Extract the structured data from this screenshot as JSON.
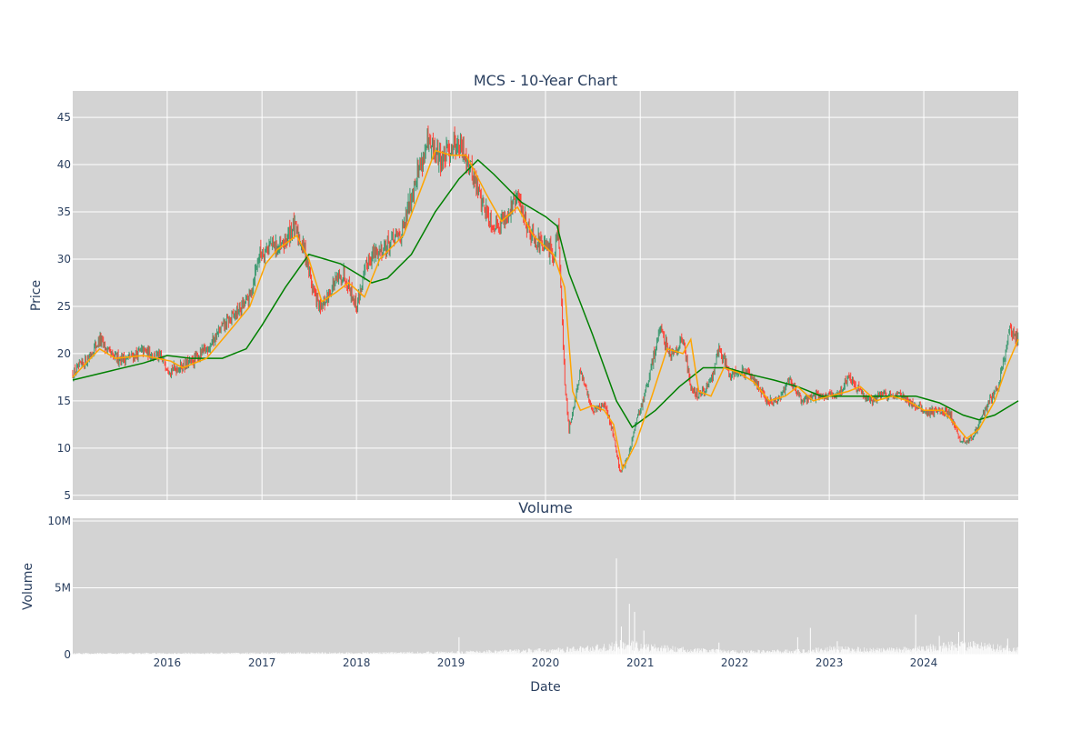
{
  "chart_data": [
    {
      "type": "candlestick",
      "title": "MCS - 10-Year Chart",
      "ylabel": "Price",
      "ylim": [
        4.5,
        47.8
      ],
      "yticks": [
        5,
        10,
        15,
        20,
        25,
        30,
        35,
        40,
        45
      ],
      "xlim": [
        "2015-01-01",
        "2024-12-31"
      ],
      "xticks": [
        {
          "date": "2016-01-01",
          "label": "2016"
        },
        {
          "date": "2017-01-01",
          "label": "2017"
        },
        {
          "date": "2018-01-01",
          "label": "2018"
        },
        {
          "date": "2019-01-01",
          "label": "2019"
        },
        {
          "date": "2020-01-01",
          "label": "2020"
        },
        {
          "date": "2021-01-01",
          "label": "2021"
        },
        {
          "date": "2022-01-01",
          "label": "2022"
        },
        {
          "date": "2023-01-01",
          "label": "2023"
        },
        {
          "date": "2024-01-01",
          "label": "2024"
        }
      ],
      "grid": true,
      "colors": {
        "increasing": "#3d9970",
        "decreasing": "#ff4136",
        "ma_short": "#ffa500",
        "ma_long": "#008000",
        "plot_bg": "#d3d3d3"
      },
      "price_close": [
        [
          "2015-01-01",
          17.8
        ],
        [
          "2015-03-01",
          19.5
        ],
        [
          "2015-04-15",
          21.5
        ],
        [
          "2015-06-01",
          19.6
        ],
        [
          "2015-08-01",
          19.5
        ],
        [
          "2015-10-01",
          20.3
        ],
        [
          "2015-12-01",
          19.6
        ],
        [
          "2016-01-15",
          18.3
        ],
        [
          "2016-04-01",
          19.0
        ],
        [
          "2016-06-01",
          20.5
        ],
        [
          "2016-08-01",
          22.8
        ],
        [
          "2016-10-01",
          24.5
        ],
        [
          "2016-11-15",
          26.0
        ],
        [
          "2016-12-20",
          30.5
        ],
        [
          "2017-02-01",
          31.5
        ],
        [
          "2017-03-15",
          31.0
        ],
        [
          "2017-05-01",
          33.5
        ],
        [
          "2017-06-15",
          31.0
        ],
        [
          "2017-07-15",
          27.0
        ],
        [
          "2017-08-15",
          24.5
        ],
        [
          "2017-10-01",
          27.2
        ],
        [
          "2017-11-15",
          28.5
        ],
        [
          "2018-01-01",
          25.0
        ],
        [
          "2018-02-15",
          30.0
        ],
        [
          "2018-05-01",
          31.5
        ],
        [
          "2018-07-01",
          33.0
        ],
        [
          "2018-08-15",
          38.5
        ],
        [
          "2018-10-01",
          42.0
        ],
        [
          "2018-12-01",
          40.5
        ],
        [
          "2019-01-15",
          42.5
        ],
        [
          "2019-03-01",
          41.0
        ],
        [
          "2019-05-01",
          36.0
        ],
        [
          "2019-06-15",
          33.5
        ],
        [
          "2019-08-01",
          34.5
        ],
        [
          "2019-09-15",
          36.5
        ],
        [
          "2019-11-01",
          33.0
        ],
        [
          "2019-12-15",
          31.5
        ],
        [
          "2020-02-01",
          30.5
        ],
        [
          "2020-02-20",
          33.5
        ],
        [
          "2020-03-15",
          17.0
        ],
        [
          "2020-04-01",
          12.0
        ],
        [
          "2020-05-15",
          18.0
        ],
        [
          "2020-07-01",
          14.0
        ],
        [
          "2020-08-15",
          14.5
        ],
        [
          "2020-09-15",
          12.0
        ],
        [
          "2020-10-15",
          7.5
        ],
        [
          "2020-11-15",
          9.0
        ],
        [
          "2020-12-15",
          12.5
        ],
        [
          "2021-02-01",
          17.0
        ],
        [
          "2021-03-15",
          22.5
        ],
        [
          "2021-05-01",
          20.0
        ],
        [
          "2021-06-15",
          21.5
        ],
        [
          "2021-07-15",
          16.5
        ],
        [
          "2021-08-15",
          15.5
        ],
        [
          "2021-10-01",
          17.0
        ],
        [
          "2021-11-01",
          20.5
        ],
        [
          "2021-12-15",
          18.0
        ],
        [
          "2022-02-01",
          18.0
        ],
        [
          "2022-03-15",
          17.5
        ],
        [
          "2022-05-01",
          15.0
        ],
        [
          "2022-06-15",
          14.8
        ],
        [
          "2022-08-01",
          17.5
        ],
        [
          "2022-09-15",
          15.0
        ],
        [
          "2022-11-01",
          15.5
        ],
        [
          "2022-12-15",
          15.5
        ],
        [
          "2023-02-01",
          15.5
        ],
        [
          "2023-03-15",
          17.5
        ],
        [
          "2023-05-01",
          16.0
        ],
        [
          "2023-06-15",
          15.0
        ],
        [
          "2023-08-01",
          15.8
        ],
        [
          "2023-10-01",
          15.5
        ],
        [
          "2023-12-01",
          14.5
        ],
        [
          "2024-01-15",
          13.8
        ],
        [
          "2024-03-01",
          14.0
        ],
        [
          "2024-04-15",
          13.5
        ],
        [
          "2024-05-15",
          11.0
        ],
        [
          "2024-06-15",
          10.5
        ],
        [
          "2024-07-15",
          11.5
        ],
        [
          "2024-09-01",
          14.5
        ],
        [
          "2024-10-15",
          16.5
        ],
        [
          "2024-11-10",
          20.0
        ],
        [
          "2024-11-25",
          22.5
        ],
        [
          "2024-12-31",
          21.5
        ]
      ],
      "ma_short": [
        [
          "2015-01-01",
          17.5
        ],
        [
          "2015-04-15",
          20.5
        ],
        [
          "2015-06-15",
          19.5
        ],
        [
          "2015-10-01",
          19.8
        ],
        [
          "2016-01-15",
          19.2
        ],
        [
          "2016-03-01",
          18.5
        ],
        [
          "2016-06-01",
          19.5
        ],
        [
          "2016-09-01",
          22.5
        ],
        [
          "2016-11-15",
          25.0
        ],
        [
          "2017-01-15",
          29.5
        ],
        [
          "2017-03-01",
          31.0
        ],
        [
          "2017-05-15",
          32.5
        ],
        [
          "2017-07-01",
          30.0
        ],
        [
          "2017-08-20",
          25.5
        ],
        [
          "2017-10-15",
          26.5
        ],
        [
          "2017-12-01",
          27.5
        ],
        [
          "2018-02-01",
          26.0
        ],
        [
          "2018-04-01",
          30.0
        ],
        [
          "2018-07-01",
          32.5
        ],
        [
          "2018-09-15",
          38.0
        ],
        [
          "2018-11-01",
          41.5
        ],
        [
          "2019-01-01",
          41.0
        ],
        [
          "2019-03-01",
          41.0
        ],
        [
          "2019-05-15",
          37.0
        ],
        [
          "2019-07-15",
          34.0
        ],
        [
          "2019-09-15",
          35.5
        ],
        [
          "2019-11-15",
          32.5
        ],
        [
          "2020-02-01",
          30.5
        ],
        [
          "2020-03-15",
          27.0
        ],
        [
          "2020-04-15",
          16.0
        ],
        [
          "2020-05-15",
          14.0
        ],
        [
          "2020-07-01",
          14.5
        ],
        [
          "2020-08-15",
          14.0
        ],
        [
          "2020-09-20",
          12.5
        ],
        [
          "2020-10-25",
          7.8
        ],
        [
          "2020-12-15",
          10.5
        ],
        [
          "2021-02-15",
          15.5
        ],
        [
          "2021-04-15",
          20.5
        ],
        [
          "2021-06-15",
          20.0
        ],
        [
          "2021-07-15",
          21.5
        ],
        [
          "2021-08-15",
          16.0
        ],
        [
          "2021-10-01",
          15.5
        ],
        [
          "2021-11-20",
          18.5
        ],
        [
          "2022-01-15",
          18.0
        ],
        [
          "2022-03-15",
          17.0
        ],
        [
          "2022-05-15",
          15.0
        ],
        [
          "2022-07-15",
          15.5
        ],
        [
          "2022-09-01",
          16.5
        ],
        [
          "2022-11-01",
          15.0
        ],
        [
          "2023-01-01",
          15.5
        ],
        [
          "2023-03-15",
          16.0
        ],
        [
          "2023-05-01",
          16.5
        ],
        [
          "2023-07-01",
          15.0
        ],
        [
          "2023-09-01",
          15.5
        ],
        [
          "2023-11-01",
          15.0
        ],
        [
          "2024-01-01",
          14.0
        ],
        [
          "2024-03-15",
          14.0
        ],
        [
          "2024-05-01",
          12.5
        ],
        [
          "2024-06-15",
          11.0
        ],
        [
          "2024-08-01",
          12.0
        ],
        [
          "2024-10-01",
          15.0
        ],
        [
          "2024-11-15",
          18.5
        ],
        [
          "2024-12-31",
          21.5
        ]
      ],
      "ma_long": [
        [
          "2015-01-01",
          17.2
        ],
        [
          "2015-06-01",
          18.2
        ],
        [
          "2015-10-01",
          19.0
        ],
        [
          "2016-01-01",
          19.8
        ],
        [
          "2016-04-01",
          19.5
        ],
        [
          "2016-08-01",
          19.5
        ],
        [
          "2016-11-01",
          20.5
        ],
        [
          "2017-01-01",
          23.0
        ],
        [
          "2017-04-01",
          27.0
        ],
        [
          "2017-07-01",
          30.5
        ],
        [
          "2017-09-01",
          30.0
        ],
        [
          "2017-11-01",
          29.5
        ],
        [
          "2018-01-01",
          28.5
        ],
        [
          "2018-03-01",
          27.5
        ],
        [
          "2018-05-01",
          28.0
        ],
        [
          "2018-08-01",
          30.5
        ],
        [
          "2018-11-01",
          35.0
        ],
        [
          "2019-02-01",
          38.5
        ],
        [
          "2019-04-15",
          40.5
        ],
        [
          "2019-06-15",
          39.0
        ],
        [
          "2019-10-01",
          36.0
        ],
        [
          "2020-01-01",
          34.5
        ],
        [
          "2020-02-15",
          33.5
        ],
        [
          "2020-04-01",
          28.5
        ],
        [
          "2020-07-01",
          22.0
        ],
        [
          "2020-10-01",
          15.0
        ],
        [
          "2020-12-01",
          12.2
        ],
        [
          "2021-03-01",
          14.0
        ],
        [
          "2021-06-01",
          16.5
        ],
        [
          "2021-09-01",
          18.5
        ],
        [
          "2021-12-01",
          18.5
        ],
        [
          "2022-03-01",
          17.8
        ],
        [
          "2022-06-01",
          17.2
        ],
        [
          "2022-09-01",
          16.5
        ],
        [
          "2022-12-01",
          15.5
        ],
        [
          "2023-03-01",
          15.5
        ],
        [
          "2023-06-01",
          15.5
        ],
        [
          "2023-09-01",
          15.5
        ],
        [
          "2023-12-01",
          15.5
        ],
        [
          "2024-03-01",
          14.8
        ],
        [
          "2024-06-01",
          13.5
        ],
        [
          "2024-08-01",
          13.0
        ],
        [
          "2024-10-01",
          13.5
        ],
        [
          "2024-12-31",
          15.0
        ]
      ]
    },
    {
      "type": "bar",
      "title": "Volume",
      "xlabel": "Date",
      "ylabel": "Volume",
      "ylim": [
        0,
        10200000
      ],
      "yticks": [
        {
          "value": 0,
          "label": "0"
        },
        {
          "value": 5000000,
          "label": "5M"
        },
        {
          "value": 10000000,
          "label": "10M"
        }
      ],
      "grid": true,
      "colors": {
        "bar": "#ffffff"
      },
      "baseline": [
        [
          "2015-01-01",
          80000
        ],
        [
          "2016-01-01",
          90000
        ],
        [
          "2017-01-01",
          100000
        ],
        [
          "2018-01-01",
          110000
        ],
        [
          "2019-01-01",
          150000
        ],
        [
          "2019-06-01",
          220000
        ],
        [
          "2020-02-01",
          300000
        ],
        [
          "2020-04-01",
          350000
        ],
        [
          "2020-09-01",
          500000
        ],
        [
          "2020-11-01",
          700000
        ],
        [
          "2021-02-01",
          500000
        ],
        [
          "2021-06-01",
          350000
        ],
        [
          "2022-01-01",
          200000
        ],
        [
          "2022-10-01",
          250000
        ],
        [
          "2023-01-01",
          400000
        ],
        [
          "2023-08-01",
          300000
        ],
        [
          "2024-01-01",
          450000
        ],
        [
          "2024-06-01",
          650000
        ],
        [
          "2024-12-31",
          350000
        ]
      ],
      "spikes": [
        [
          "2019-02-01",
          1300000
        ],
        [
          "2020-10-01",
          7200000
        ],
        [
          "2020-10-20",
          2100000
        ],
        [
          "2020-11-20",
          3800000
        ],
        [
          "2020-12-10",
          3200000
        ],
        [
          "2021-01-15",
          1800000
        ],
        [
          "2021-11-01",
          900000
        ],
        [
          "2022-09-01",
          1300000
        ],
        [
          "2022-10-20",
          2000000
        ],
        [
          "2023-02-01",
          1000000
        ],
        [
          "2023-12-01",
          3000000
        ],
        [
          "2024-03-01",
          1400000
        ],
        [
          "2024-05-15",
          1700000
        ],
        [
          "2024-06-05",
          10000000
        ],
        [
          "2024-11-20",
          1200000
        ]
      ]
    }
  ]
}
